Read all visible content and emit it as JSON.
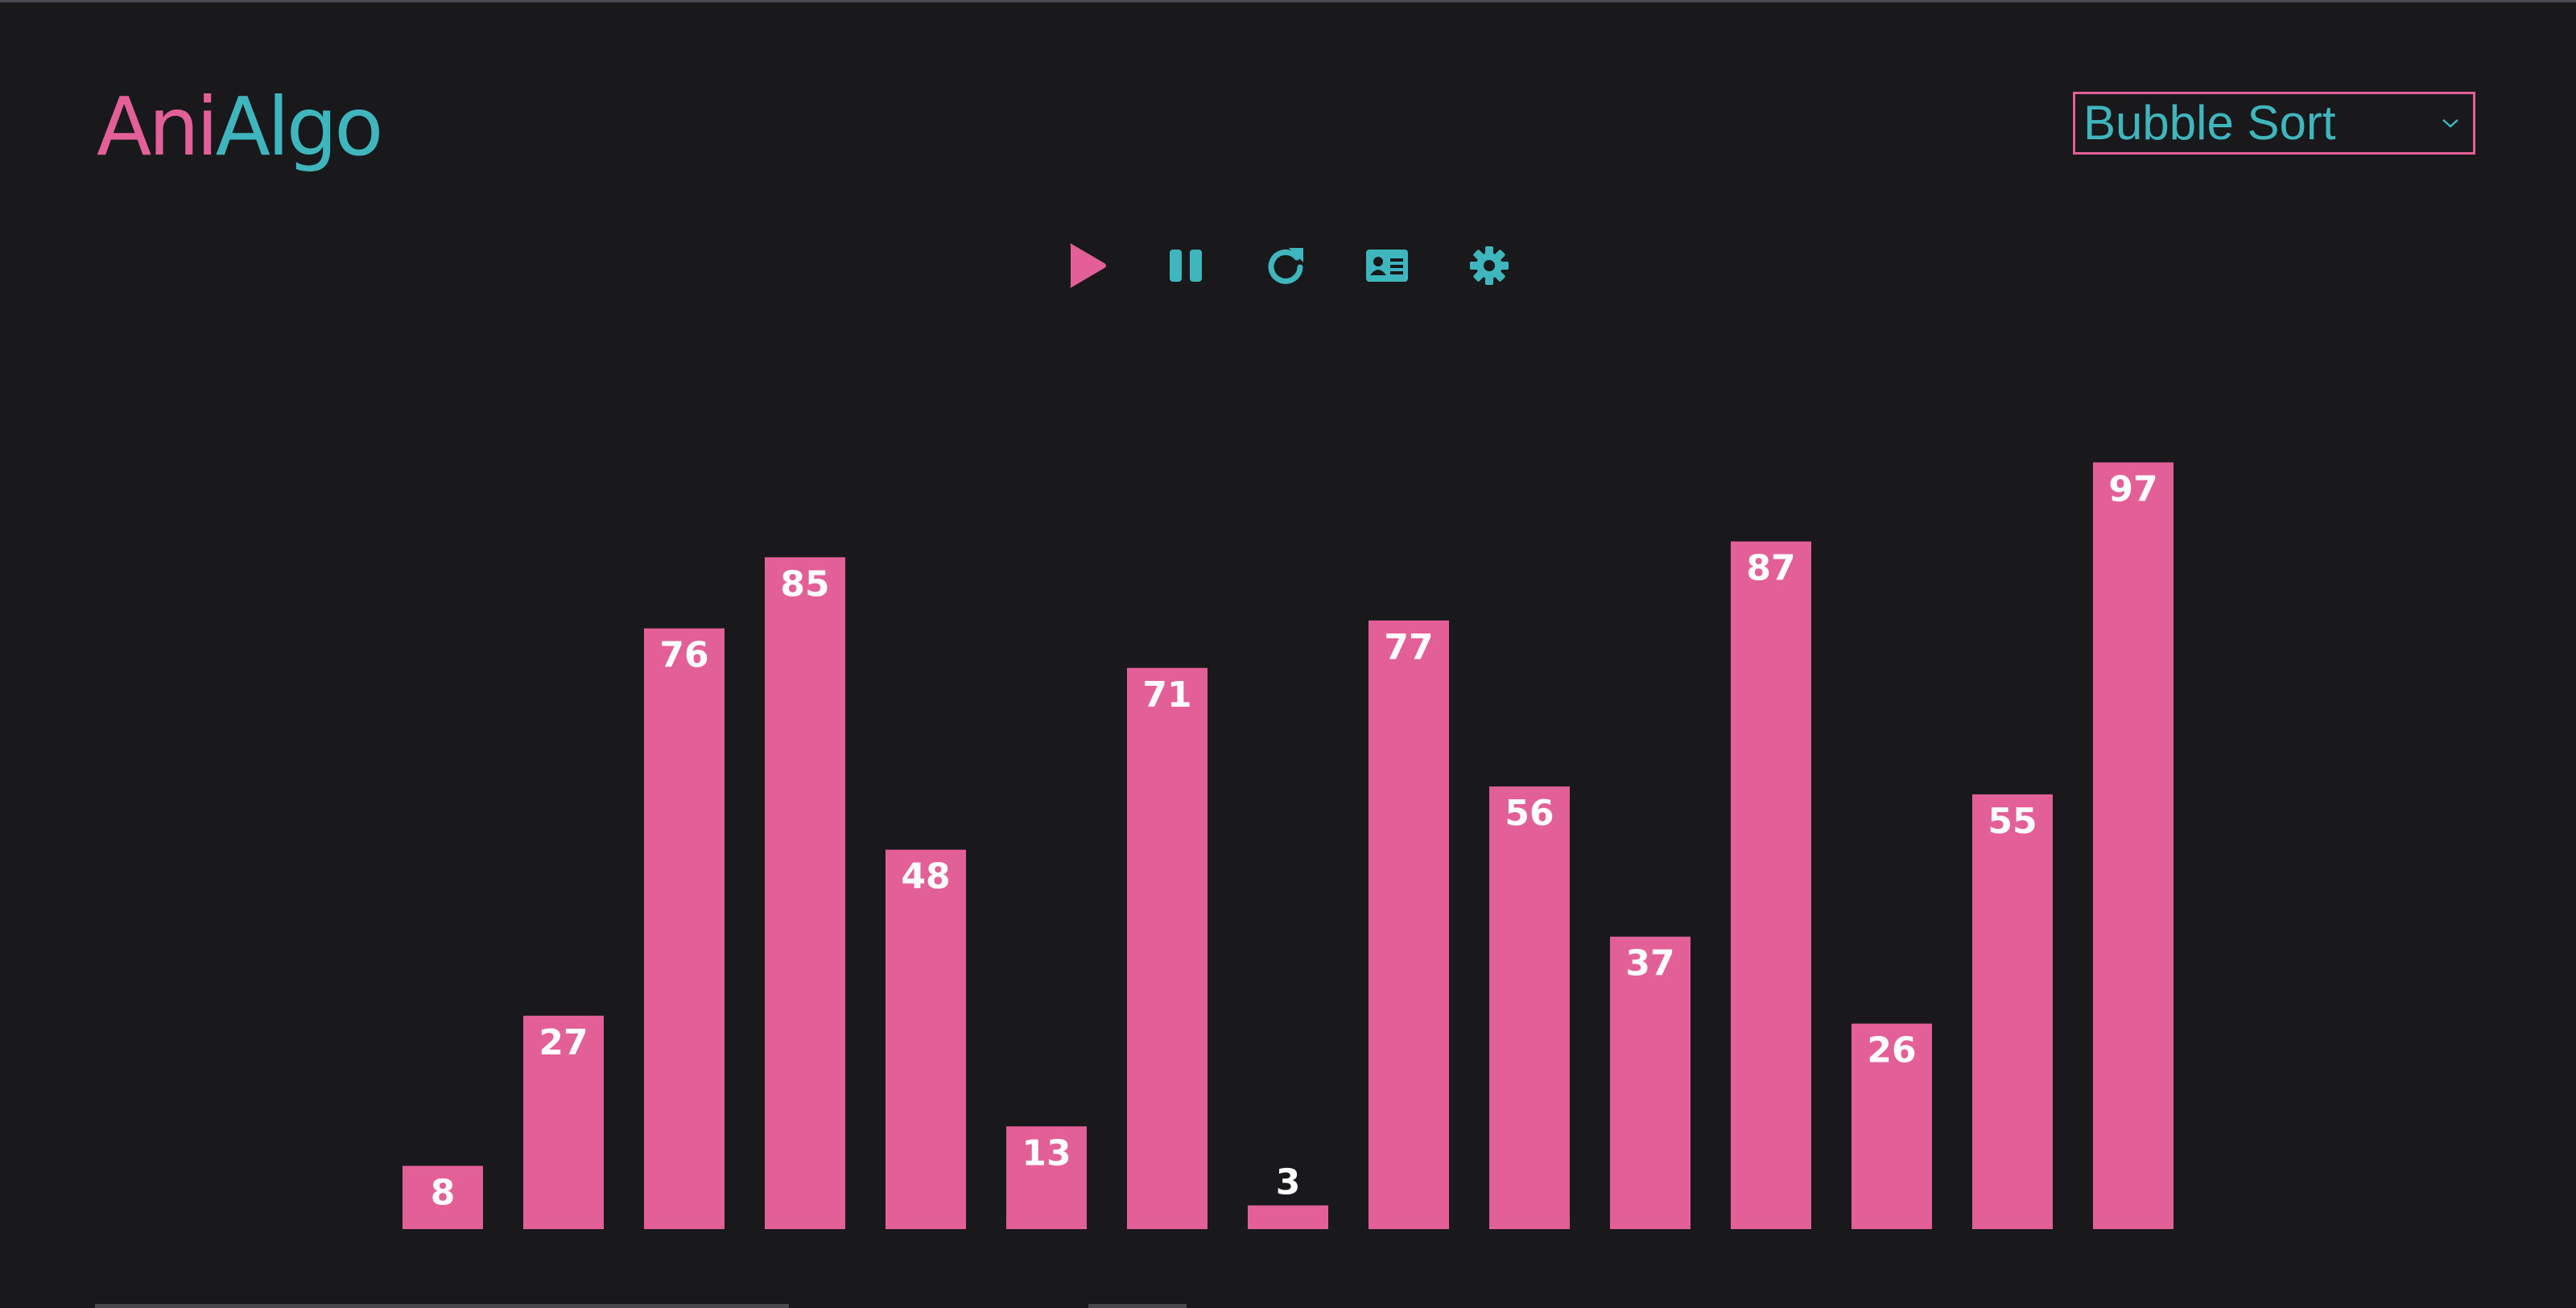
{
  "app": {
    "logo_part_a": "Ani",
    "logo_part_b": "Algo"
  },
  "algorithm_select": {
    "selected": "Bubble Sort",
    "caret_icon": "chevron-down-icon"
  },
  "controls": [
    {
      "name": "play-button",
      "icon": "play-icon",
      "color": "#e25f97"
    },
    {
      "name": "pause-button",
      "icon": "pause-icon",
      "color": "#3fb5bd"
    },
    {
      "name": "reset-button",
      "icon": "redo-icon",
      "color": "#3fb5bd"
    },
    {
      "name": "info-button",
      "icon": "id-card-icon",
      "color": "#3fb5bd"
    },
    {
      "name": "settings-button",
      "icon": "gear-icon",
      "color": "#3fb5bd"
    }
  ],
  "colors": {
    "background": "#19191b",
    "accent_pink": "#e25f97",
    "accent_teal": "#3fb5bd",
    "label_text": "#ffffff"
  },
  "chart_data": {
    "type": "bar",
    "values": [
      8,
      27,
      76,
      85,
      48,
      13,
      71,
      3,
      77,
      56,
      37,
      87,
      26,
      55,
      97
    ],
    "bar_color": "#e25f97",
    "ylim": [
      0,
      100
    ],
    "data_labels": true
  }
}
